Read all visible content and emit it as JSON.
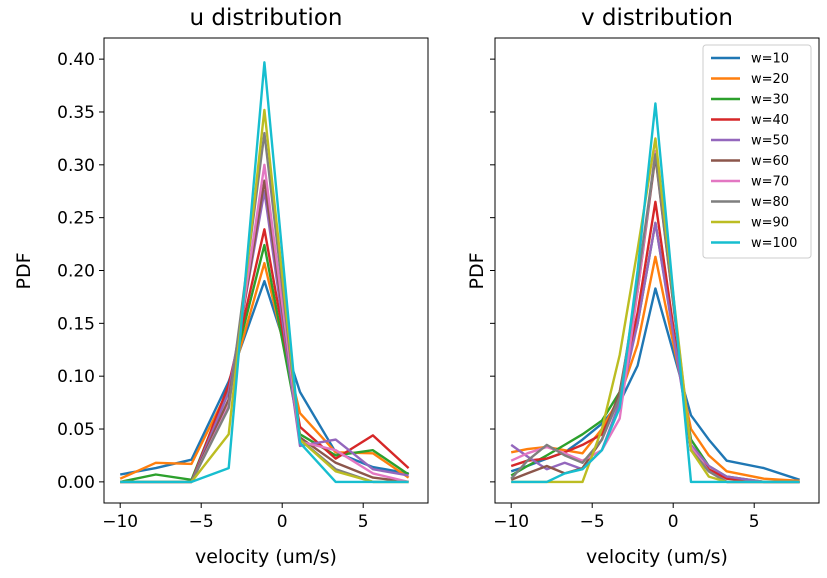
{
  "chart_data": [
    {
      "type": "line",
      "title": "u distribution",
      "xlabel": "velocity (um/s)",
      "ylabel": "PDF",
      "xlim": [
        -11,
        9
      ],
      "ylim": [
        -0.02,
        0.42
      ],
      "xticks": [
        -10,
        -5,
        0,
        5
      ],
      "xtick_labels": [
        "−10",
        "−5",
        "0",
        "5"
      ],
      "yticks": [
        0.0,
        0.05,
        0.1,
        0.15,
        0.2,
        0.25,
        0.3,
        0.35,
        0.4
      ],
      "ytick_labels": [
        "0.00",
        "0.05",
        "0.10",
        "0.15",
        "0.20",
        "0.25",
        "0.30",
        "0.35",
        "0.40"
      ],
      "x": [
        -10,
        -7.8,
        -5.6,
        -3.3,
        -1.1,
        1.1,
        3.3,
        5.6,
        7.8
      ],
      "grid": false,
      "series": [
        {
          "name": "w=10",
          "color": "#1f77b4",
          "values": [
            0.007,
            0.013,
            0.021,
            0.095,
            0.19,
            0.085,
            0.028,
            0.014,
            0.008
          ]
        },
        {
          "name": "w=20",
          "color": "#ff7f0e",
          "values": [
            0.003,
            0.018,
            0.017,
            0.088,
            0.207,
            0.065,
            0.028,
            0.027,
            0.004
          ]
        },
        {
          "name": "w=30",
          "color": "#2ca02c",
          "values": [
            0.0,
            0.007,
            0.002,
            0.09,
            0.224,
            0.045,
            0.025,
            0.03,
            0.007
          ]
        },
        {
          "name": "w=40",
          "color": "#d62728",
          "values": [
            0.0,
            0.0,
            0.0,
            0.092,
            0.239,
            0.052,
            0.022,
            0.044,
            0.013
          ]
        },
        {
          "name": "w=50",
          "color": "#9467bd",
          "values": [
            0.0,
            0.0,
            0.0,
            0.085,
            0.275,
            0.034,
            0.04,
            0.012,
            0.006
          ]
        },
        {
          "name": "w=60",
          "color": "#8c564b",
          "values": [
            0.0,
            0.0,
            0.0,
            0.078,
            0.285,
            0.042,
            0.018,
            0.004,
            0.0
          ]
        },
        {
          "name": "w=70",
          "color": "#e377c2",
          "values": [
            0.0,
            0.0,
            0.0,
            0.072,
            0.3,
            0.038,
            0.03,
            0.008,
            0.0
          ]
        },
        {
          "name": "w=80",
          "color": "#7f7f7f",
          "values": [
            0.0,
            0.0,
            0.0,
            0.07,
            0.33,
            0.04,
            0.012,
            0.0,
            0.0
          ]
        },
        {
          "name": "w=90",
          "color": "#bcbd22",
          "values": [
            0.0,
            0.0,
            0.0,
            0.045,
            0.352,
            0.04,
            0.01,
            0.0,
            0.0
          ]
        },
        {
          "name": "w=100",
          "color": "#17becf",
          "values": [
            0.0,
            0.0,
            0.0,
            0.013,
            0.397,
            0.037,
            0.0,
            0.0,
            0.0
          ]
        }
      ]
    },
    {
      "type": "line",
      "title": "v distribution",
      "xlabel": "velocity (um/s)",
      "ylabel": "PDF",
      "xlim": [
        -11,
        9
      ],
      "ylim": [
        -0.02,
        0.42
      ],
      "xticks": [
        -10,
        -5,
        0,
        5
      ],
      "xtick_labels": [
        "−10",
        "−5",
        "0",
        "5"
      ],
      "yticks": [
        0.0,
        0.05,
        0.1,
        0.15,
        0.2,
        0.25,
        0.3,
        0.35,
        0.4
      ],
      "shared_y": true,
      "legend": "top-right",
      "x": [
        -10,
        -9,
        -7.8,
        -6.7,
        -5.6,
        -4.4,
        -3.3,
        -2.2,
        -1.1,
        1.1,
        2.2,
        3.3,
        5.6,
        7.8
      ],
      "grid": false,
      "series": [
        {
          "name": "w=10",
          "color": "#1f77b4",
          "values": [
            0.01,
            0.015,
            0.022,
            0.028,
            0.04,
            0.055,
            0.075,
            0.11,
            0.183,
            0.063,
            0.04,
            0.02,
            0.013,
            0.002
          ]
        },
        {
          "name": "w=20",
          "color": "#ff7f0e",
          "values": [
            0.028,
            0.031,
            0.033,
            0.03,
            0.027,
            0.05,
            0.08,
            0.13,
            0.213,
            0.05,
            0.025,
            0.01,
            0.003,
            0.001
          ]
        },
        {
          "name": "w=30",
          "color": "#2ca02c",
          "values": [
            0.006,
            0.015,
            0.025,
            0.035,
            0.045,
            0.058,
            0.085,
            0.15,
            0.245,
            0.04,
            0.015,
            0.005,
            0.0,
            0.0
          ]
        },
        {
          "name": "w=40",
          "color": "#d62728",
          "values": [
            0.015,
            0.02,
            0.022,
            0.028,
            0.035,
            0.045,
            0.08,
            0.16,
            0.265,
            0.03,
            0.012,
            0.003,
            0.0,
            0.0
          ]
        },
        {
          "name": "w=50",
          "color": "#9467bd",
          "values": [
            0.035,
            0.024,
            0.012,
            0.018,
            0.012,
            0.03,
            0.075,
            0.15,
            0.245,
            0.035,
            0.015,
            0.005,
            0.0,
            0.0
          ]
        },
        {
          "name": "w=60",
          "color": "#8c564b",
          "values": [
            0.002,
            0.008,
            0.015,
            0.008,
            0.013,
            0.04,
            0.085,
            0.18,
            0.308,
            0.03,
            0.01,
            0.0,
            0.0,
            0.0
          ]
        },
        {
          "name": "w=70",
          "color": "#e377c2",
          "values": [
            0.02,
            0.027,
            0.033,
            0.027,
            0.02,
            0.03,
            0.06,
            0.18,
            0.313,
            0.033,
            0.01,
            0.0,
            0.0,
            0.0
          ]
        },
        {
          "name": "w=80",
          "color": "#7f7f7f",
          "values": [
            0.003,
            0.02,
            0.035,
            0.025,
            0.018,
            0.04,
            0.08,
            0.19,
            0.31,
            0.03,
            0.01,
            0.0,
            0.0,
            0.0
          ]
        },
        {
          "name": "w=90",
          "color": "#bcbd22",
          "values": [
            0.0,
            0.0,
            0.0,
            0.0,
            0.0,
            0.05,
            0.12,
            0.22,
            0.325,
            0.03,
            0.005,
            0.0,
            0.0,
            0.0
          ]
        },
        {
          "name": "w=100",
          "color": "#17becf",
          "values": [
            0.0,
            0.0,
            0.0,
            0.008,
            0.012,
            0.03,
            0.07,
            0.2,
            0.358,
            0.0,
            0.0,
            0.0,
            0.0,
            0.0
          ]
        }
      ]
    }
  ]
}
